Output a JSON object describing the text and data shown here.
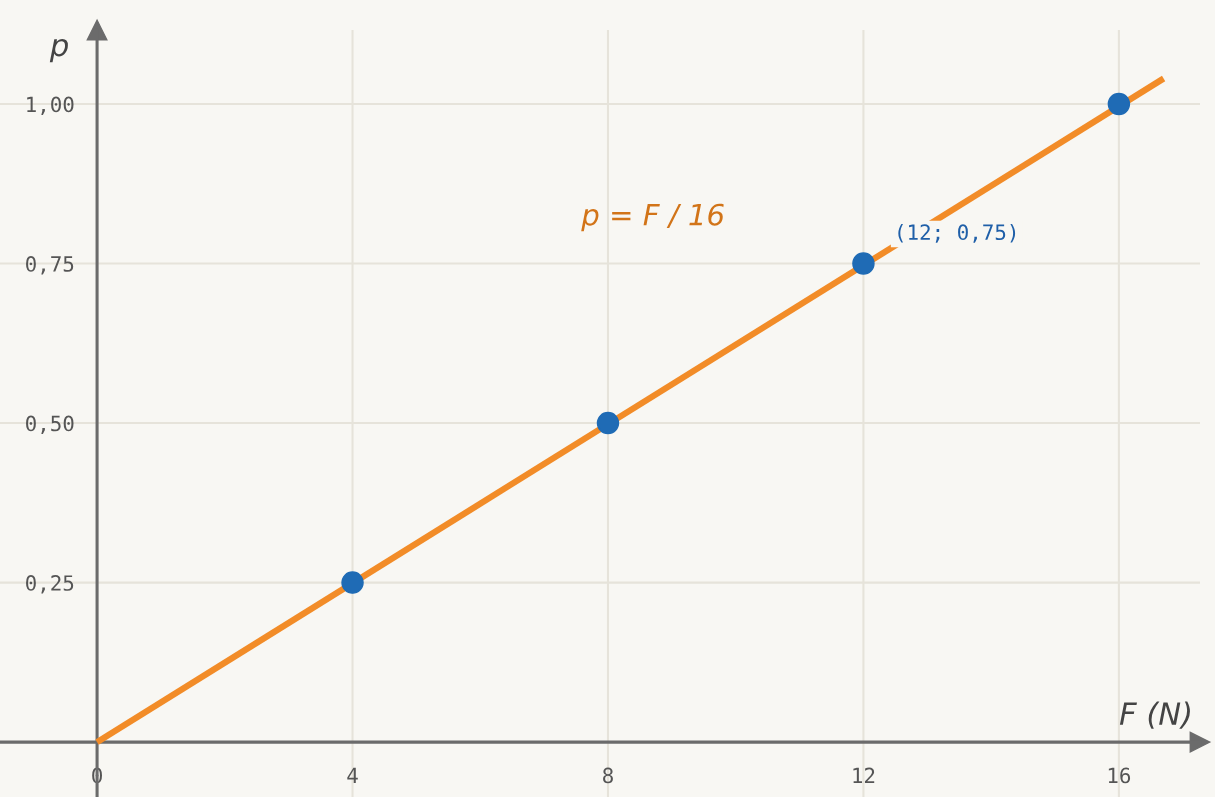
{
  "chart_data": {
    "type": "line",
    "xlabel": "F (N)",
    "ylabel": "p",
    "series": [
      {
        "name": "p = F / 16",
        "color": "#f28c28",
        "marker": "none",
        "x": [
          0,
          16.7
        ],
        "values": [
          0,
          1.04
        ]
      },
      {
        "type": "scatter",
        "color": "#1f6bb5",
        "marker": "circle",
        "x": [
          4,
          8,
          12,
          16
        ],
        "values": [
          0.25,
          0.5,
          0.75,
          1.0
        ]
      }
    ],
    "annotations": [
      {
        "text": "(12; 0,75)",
        "x": 12,
        "y": 0.75
      }
    ],
    "xlim": [
      -1.52,
      17.27
    ],
    "ylim": [
      -0.086,
      1.116
    ],
    "xticks": [
      0,
      4,
      8,
      12,
      16
    ],
    "yticks": [
      {
        "value": 0.25,
        "label": "0,25"
      },
      {
        "value": 0.5,
        "label": "0,50"
      },
      {
        "value": 0.75,
        "label": "0,75"
      },
      {
        "value": 1.0,
        "label": "1,00"
      }
    ],
    "grid": true,
    "legend": false
  }
}
